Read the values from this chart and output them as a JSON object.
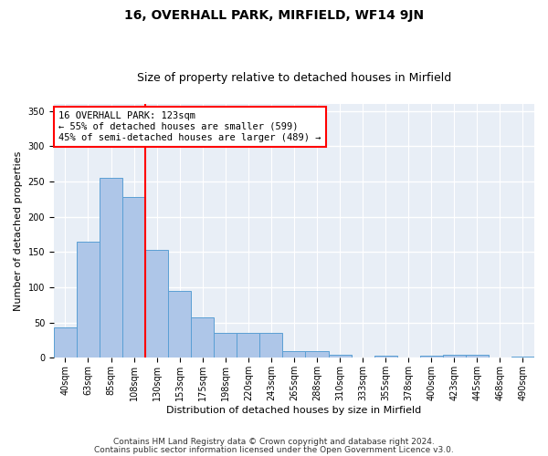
{
  "title": "16, OVERHALL PARK, MIRFIELD, WF14 9JN",
  "subtitle": "Size of property relative to detached houses in Mirfield",
  "xlabel": "Distribution of detached houses by size in Mirfield",
  "ylabel": "Number of detached properties",
  "categories": [
    "40sqm",
    "63sqm",
    "85sqm",
    "108sqm",
    "130sqm",
    "153sqm",
    "175sqm",
    "198sqm",
    "220sqm",
    "243sqm",
    "265sqm",
    "288sqm",
    "310sqm",
    "333sqm",
    "355sqm",
    "378sqm",
    "400sqm",
    "423sqm",
    "445sqm",
    "468sqm",
    "490sqm"
  ],
  "values": [
    43,
    165,
    255,
    228,
    153,
    95,
    58,
    35,
    35,
    35,
    10,
    10,
    5,
    0,
    3,
    0,
    3,
    5,
    5,
    0,
    2
  ],
  "bar_color": "#aec6e8",
  "bar_edge_color": "#5a9fd4",
  "reference_line_x": 3.5,
  "annotation_text": "16 OVERHALL PARK: 123sqm\n← 55% of detached houses are smaller (599)\n45% of semi-detached houses are larger (489) →",
  "annotation_box_color": "white",
  "annotation_box_edge_color": "red",
  "vline_color": "red",
  "ylim": [
    0,
    360
  ],
  "yticks": [
    0,
    50,
    100,
    150,
    200,
    250,
    300,
    350
  ],
  "background_color": "#e8eef6",
  "grid_color": "white",
  "footer1": "Contains HM Land Registry data © Crown copyright and database right 2024.",
  "footer2": "Contains public sector information licensed under the Open Government Licence v3.0.",
  "title_fontsize": 10,
  "subtitle_fontsize": 9,
  "xlabel_fontsize": 8,
  "ylabel_fontsize": 8,
  "tick_fontsize": 7,
  "footer_fontsize": 6.5,
  "annotation_fontsize": 7.5
}
